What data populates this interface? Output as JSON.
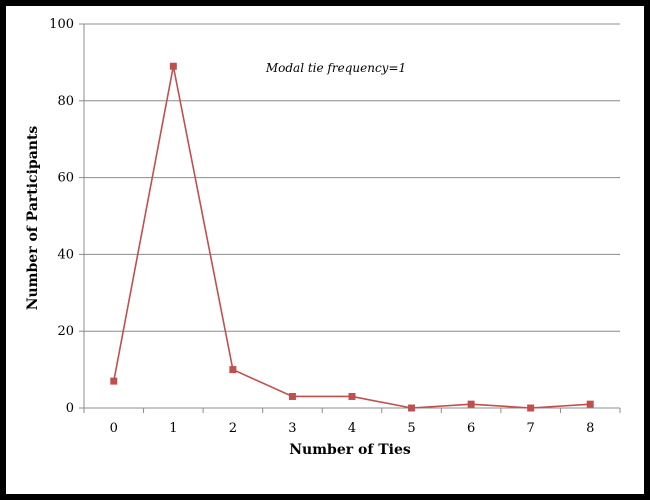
{
  "chart_data": {
    "type": "line",
    "title": "",
    "xlabel": "Number of Ties",
    "ylabel": "Number of Participants",
    "annotation": "Modal tie frequency=1",
    "x": [
      "0",
      "1",
      "2",
      "3",
      "4",
      "5",
      "6",
      "7",
      "8"
    ],
    "series": [
      {
        "values": [
          7,
          89,
          10,
          3,
          3,
          0,
          1,
          0,
          1
        ]
      }
    ],
    "ylim": [
      0,
      100
    ],
    "yticks": [
      0,
      20,
      40,
      60,
      80,
      100
    ],
    "grid": true,
    "legend": "none",
    "colors": {
      "line": "#c0504d",
      "marker": "#c0504d",
      "grid": "#8c8c8c",
      "axis": "#8c8c8c"
    }
  }
}
